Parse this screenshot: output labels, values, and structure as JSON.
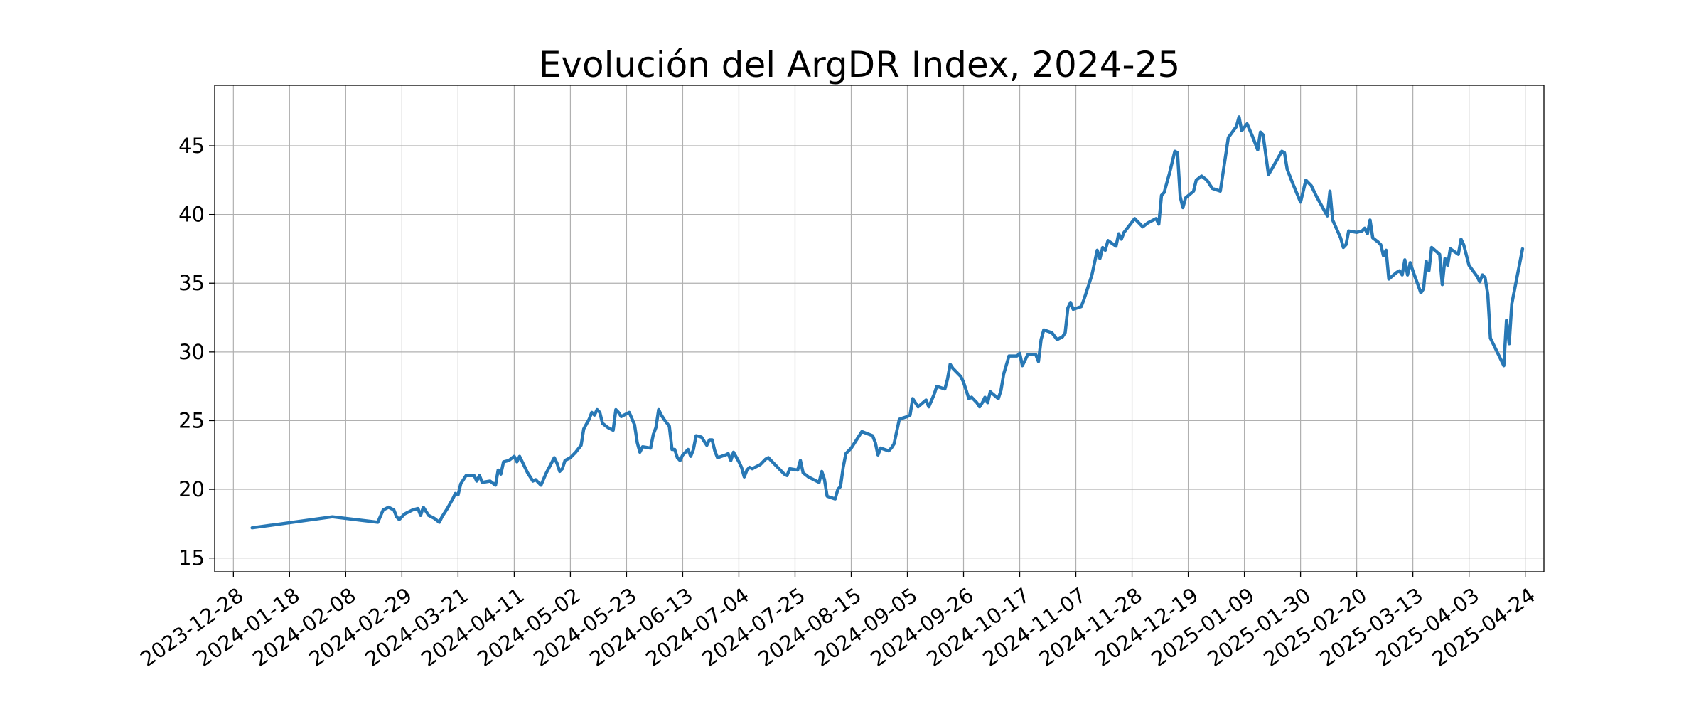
{
  "chart_data": {
    "type": "line",
    "title": "Evolución del ArgDR Index, 2024-25",
    "xlabel": "",
    "ylabel": "",
    "x_axis_type": "date",
    "xlim": [
      "2023-12-21",
      "2025-05-01"
    ],
    "ylim": [
      14,
      49.4
    ],
    "grid": true,
    "legend": "none",
    "line_color": "#2878b5",
    "x_ticks": [
      "2023-12-28",
      "2024-01-18",
      "2024-02-08",
      "2024-02-29",
      "2024-03-21",
      "2024-04-11",
      "2024-05-02",
      "2024-05-23",
      "2024-06-13",
      "2024-07-04",
      "2024-07-25",
      "2024-08-15",
      "2024-09-05",
      "2024-09-26",
      "2024-10-17",
      "2024-11-07",
      "2024-11-28",
      "2024-12-19",
      "2025-01-09",
      "2025-01-30",
      "2025-02-20",
      "2025-03-13",
      "2025-04-03",
      "2025-04-24"
    ],
    "y_ticks": [
      "15",
      "20",
      "25",
      "30",
      "35",
      "40",
      "45"
    ],
    "series": [
      {
        "points": [
          [
            "2024-01-04",
            17.2
          ],
          [
            "2024-02-03",
            18.0
          ],
          [
            "2024-02-20",
            17.6
          ],
          [
            "2024-02-22",
            18.5
          ],
          [
            "2024-02-24",
            18.7
          ],
          [
            "2024-02-26",
            18.5
          ],
          [
            "2024-02-27",
            18.0
          ],
          [
            "2024-02-28",
            17.8
          ],
          [
            "2024-03-01",
            18.2
          ],
          [
            "2024-03-04",
            18.5
          ],
          [
            "2024-03-06",
            18.6
          ],
          [
            "2024-03-07",
            18.1
          ],
          [
            "2024-03-08",
            18.7
          ],
          [
            "2024-03-10",
            18.1
          ],
          [
            "2024-03-12",
            17.9
          ],
          [
            "2024-03-14",
            17.6
          ],
          [
            "2024-03-15",
            18.0
          ],
          [
            "2024-03-17",
            18.6
          ],
          [
            "2024-03-19",
            19.3
          ],
          [
            "2024-03-20",
            19.7
          ],
          [
            "2024-03-21",
            19.6
          ],
          [
            "2024-03-22",
            20.4
          ],
          [
            "2024-03-24",
            21.0
          ],
          [
            "2024-03-27",
            21.0
          ],
          [
            "2024-03-28",
            20.6
          ],
          [
            "2024-03-29",
            21.0
          ],
          [
            "2024-03-30",
            20.5
          ],
          [
            "2024-04-02",
            20.6
          ],
          [
            "2024-04-04",
            20.3
          ],
          [
            "2024-04-05",
            21.4
          ],
          [
            "2024-04-06",
            21.1
          ],
          [
            "2024-04-07",
            22.0
          ],
          [
            "2024-04-09",
            22.1
          ],
          [
            "2024-04-11",
            22.4
          ],
          [
            "2024-04-12",
            22.0
          ],
          [
            "2024-04-13",
            22.4
          ],
          [
            "2024-04-14",
            22.0
          ],
          [
            "2024-04-16",
            21.2
          ],
          [
            "2024-04-18",
            20.6
          ],
          [
            "2024-04-19",
            20.7
          ],
          [
            "2024-04-21",
            20.3
          ],
          [
            "2024-04-23",
            21.2
          ],
          [
            "2024-04-26",
            22.3
          ],
          [
            "2024-04-27",
            21.9
          ],
          [
            "2024-04-28",
            21.3
          ],
          [
            "2024-04-29",
            21.5
          ],
          [
            "2024-04-30",
            22.1
          ],
          [
            "2024-05-02",
            22.3
          ],
          [
            "2024-05-04",
            22.7
          ],
          [
            "2024-05-06",
            23.2
          ],
          [
            "2024-05-07",
            24.4
          ],
          [
            "2024-05-09",
            25.1
          ],
          [
            "2024-05-10",
            25.6
          ],
          [
            "2024-05-11",
            25.4
          ],
          [
            "2024-05-12",
            25.8
          ],
          [
            "2024-05-13",
            25.6
          ],
          [
            "2024-05-14",
            24.8
          ],
          [
            "2024-05-16",
            24.5
          ],
          [
            "2024-05-18",
            24.3
          ],
          [
            "2024-05-19",
            25.8
          ],
          [
            "2024-05-20",
            25.6
          ],
          [
            "2024-05-21",
            25.3
          ],
          [
            "2024-05-24",
            25.6
          ],
          [
            "2024-05-26",
            24.7
          ],
          [
            "2024-05-27",
            23.4
          ],
          [
            "2024-05-28",
            22.7
          ],
          [
            "2024-05-29",
            23.1
          ],
          [
            "2024-06-01",
            23.0
          ],
          [
            "2024-06-02",
            24.0
          ],
          [
            "2024-06-03",
            24.5
          ],
          [
            "2024-06-04",
            25.8
          ],
          [
            "2024-06-05",
            25.4
          ],
          [
            "2024-06-06",
            25.1
          ],
          [
            "2024-06-08",
            24.6
          ],
          [
            "2024-06-09",
            22.9
          ],
          [
            "2024-06-10",
            22.9
          ],
          [
            "2024-06-11",
            22.3
          ],
          [
            "2024-06-12",
            22.1
          ],
          [
            "2024-06-13",
            22.5
          ],
          [
            "2024-06-15",
            22.9
          ],
          [
            "2024-06-16",
            22.4
          ],
          [
            "2024-06-17",
            22.9
          ],
          [
            "2024-06-18",
            23.9
          ],
          [
            "2024-06-20",
            23.8
          ],
          [
            "2024-06-22",
            23.2
          ],
          [
            "2024-06-23",
            23.6
          ],
          [
            "2024-06-24",
            23.6
          ],
          [
            "2024-06-25",
            22.8
          ],
          [
            "2024-06-26",
            22.3
          ],
          [
            "2024-06-29",
            22.5
          ],
          [
            "2024-06-30",
            22.6
          ],
          [
            "2024-07-01",
            22.1
          ],
          [
            "2024-07-02",
            22.7
          ],
          [
            "2024-07-04",
            22.0
          ],
          [
            "2024-07-05",
            21.6
          ],
          [
            "2024-07-06",
            20.9
          ],
          [
            "2024-07-07",
            21.4
          ],
          [
            "2024-07-08",
            21.6
          ],
          [
            "2024-07-09",
            21.5
          ],
          [
            "2024-07-12",
            21.8
          ],
          [
            "2024-07-14",
            22.2
          ],
          [
            "2024-07-15",
            22.3
          ],
          [
            "2024-07-17",
            21.9
          ],
          [
            "2024-07-19",
            21.5
          ],
          [
            "2024-07-21",
            21.1
          ],
          [
            "2024-07-22",
            21.0
          ],
          [
            "2024-07-23",
            21.5
          ],
          [
            "2024-07-26",
            21.4
          ],
          [
            "2024-07-27",
            22.1
          ],
          [
            "2024-07-28",
            21.2
          ],
          [
            "2024-07-30",
            20.9
          ],
          [
            "2024-08-03",
            20.5
          ],
          [
            "2024-08-04",
            21.3
          ],
          [
            "2024-08-05",
            20.7
          ],
          [
            "2024-08-06",
            19.5
          ],
          [
            "2024-08-09",
            19.3
          ],
          [
            "2024-08-10",
            20.0
          ],
          [
            "2024-08-11",
            20.2
          ],
          [
            "2024-08-12",
            21.6
          ],
          [
            "2024-08-13",
            22.6
          ],
          [
            "2024-08-15",
            23.0
          ],
          [
            "2024-08-17",
            23.6
          ],
          [
            "2024-08-19",
            24.2
          ],
          [
            "2024-08-23",
            23.9
          ],
          [
            "2024-08-24",
            23.4
          ],
          [
            "2024-08-25",
            22.5
          ],
          [
            "2024-08-26",
            23.0
          ],
          [
            "2024-08-29",
            22.8
          ],
          [
            "2024-08-30",
            23.0
          ],
          [
            "2024-08-31",
            23.3
          ],
          [
            "2024-09-02",
            25.1
          ],
          [
            "2024-09-05",
            25.3
          ],
          [
            "2024-09-06",
            25.4
          ],
          [
            "2024-09-07",
            26.6
          ],
          [
            "2024-09-08",
            26.3
          ],
          [
            "2024-09-09",
            26.0
          ],
          [
            "2024-09-12",
            26.5
          ],
          [
            "2024-09-13",
            26.0
          ],
          [
            "2024-09-15",
            26.9
          ],
          [
            "2024-09-16",
            27.5
          ],
          [
            "2024-09-19",
            27.3
          ],
          [
            "2024-09-20",
            28.0
          ],
          [
            "2024-09-21",
            29.1
          ],
          [
            "2024-09-22",
            28.8
          ],
          [
            "2024-09-25",
            28.2
          ],
          [
            "2024-09-26",
            27.8
          ],
          [
            "2024-09-28",
            26.6
          ],
          [
            "2024-09-29",
            26.7
          ],
          [
            "2024-10-01",
            26.3
          ],
          [
            "2024-10-02",
            26.0
          ],
          [
            "2024-10-03",
            26.3
          ],
          [
            "2024-10-04",
            26.7
          ],
          [
            "2024-10-05",
            26.3
          ],
          [
            "2024-10-06",
            27.1
          ],
          [
            "2024-10-09",
            26.6
          ],
          [
            "2024-10-10",
            27.2
          ],
          [
            "2024-10-11",
            28.4
          ],
          [
            "2024-10-13",
            29.7
          ],
          [
            "2024-10-16",
            29.7
          ],
          [
            "2024-10-17",
            29.9
          ],
          [
            "2024-10-18",
            29.0
          ],
          [
            "2024-10-20",
            29.8
          ],
          [
            "2024-10-23",
            29.8
          ],
          [
            "2024-10-24",
            29.3
          ],
          [
            "2024-10-25",
            30.9
          ],
          [
            "2024-10-26",
            31.6
          ],
          [
            "2024-10-29",
            31.4
          ],
          [
            "2024-10-31",
            30.9
          ],
          [
            "2024-11-02",
            31.1
          ],
          [
            "2024-11-03",
            31.4
          ],
          [
            "2024-11-04",
            33.2
          ],
          [
            "2024-11-05",
            33.6
          ],
          [
            "2024-11-06",
            33.1
          ],
          [
            "2024-11-09",
            33.3
          ],
          [
            "2024-11-10",
            33.8
          ],
          [
            "2024-11-12",
            35.0
          ],
          [
            "2024-11-13",
            35.6
          ],
          [
            "2024-11-15",
            37.4
          ],
          [
            "2024-11-16",
            36.8
          ],
          [
            "2024-11-17",
            37.6
          ],
          [
            "2024-11-18",
            37.4
          ],
          [
            "2024-11-19",
            38.1
          ],
          [
            "2024-11-22",
            37.7
          ],
          [
            "2024-11-23",
            38.6
          ],
          [
            "2024-11-24",
            38.2
          ],
          [
            "2024-11-25",
            38.7
          ],
          [
            "2024-11-27",
            39.2
          ],
          [
            "2024-11-29",
            39.7
          ],
          [
            "2024-12-02",
            39.1
          ],
          [
            "2024-12-04",
            39.4
          ],
          [
            "2024-12-07",
            39.7
          ],
          [
            "2024-12-08",
            39.3
          ],
          [
            "2024-12-09",
            41.4
          ],
          [
            "2024-12-10",
            41.6
          ],
          [
            "2024-12-12",
            43.0
          ],
          [
            "2024-12-14",
            44.6
          ],
          [
            "2024-12-15",
            44.5
          ],
          [
            "2024-12-16",
            41.3
          ],
          [
            "2024-12-17",
            40.5
          ],
          [
            "2024-12-18",
            41.2
          ],
          [
            "2024-12-21",
            41.7
          ],
          [
            "2024-12-22",
            42.5
          ],
          [
            "2024-12-24",
            42.8
          ],
          [
            "2024-12-26",
            42.5
          ],
          [
            "2024-12-28",
            41.9
          ],
          [
            "2024-12-31",
            41.7
          ],
          [
            "2025-01-03",
            45.6
          ],
          [
            "2025-01-06",
            46.4
          ],
          [
            "2025-01-07",
            47.1
          ],
          [
            "2025-01-08",
            46.1
          ],
          [
            "2025-01-10",
            46.6
          ],
          [
            "2025-01-12",
            45.7
          ],
          [
            "2025-01-14",
            44.7
          ],
          [
            "2025-01-15",
            46.0
          ],
          [
            "2025-01-16",
            45.8
          ],
          [
            "2025-01-18",
            42.9
          ],
          [
            "2025-01-21",
            43.9
          ],
          [
            "2025-01-23",
            44.6
          ],
          [
            "2025-01-24",
            44.5
          ],
          [
            "2025-01-25",
            43.3
          ],
          [
            "2025-01-27",
            42.3
          ],
          [
            "2025-01-30",
            40.9
          ],
          [
            "2025-02-01",
            42.5
          ],
          [
            "2025-02-03",
            42.1
          ],
          [
            "2025-02-05",
            41.3
          ],
          [
            "2025-02-07",
            40.6
          ],
          [
            "2025-02-09",
            39.9
          ],
          [
            "2025-02-10",
            41.7
          ],
          [
            "2025-02-11",
            39.6
          ],
          [
            "2025-02-14",
            38.3
          ],
          [
            "2025-02-15",
            37.6
          ],
          [
            "2025-02-16",
            37.8
          ],
          [
            "2025-02-17",
            38.8
          ],
          [
            "2025-02-20",
            38.7
          ],
          [
            "2025-02-22",
            38.8
          ],
          [
            "2025-02-23",
            39.0
          ],
          [
            "2025-02-24",
            38.6
          ],
          [
            "2025-02-25",
            39.6
          ],
          [
            "2025-02-26",
            38.3
          ],
          [
            "2025-02-28",
            38.0
          ],
          [
            "2025-03-01",
            37.8
          ],
          [
            "2025-03-02",
            37.0
          ],
          [
            "2025-03-03",
            37.4
          ],
          [
            "2025-03-04",
            35.3
          ],
          [
            "2025-03-07",
            35.8
          ],
          [
            "2025-03-08",
            35.9
          ],
          [
            "2025-03-09",
            35.6
          ],
          [
            "2025-03-10",
            36.7
          ],
          [
            "2025-03-11",
            35.6
          ],
          [
            "2025-03-12",
            36.5
          ],
          [
            "2025-03-13",
            35.9
          ],
          [
            "2025-03-16",
            34.3
          ],
          [
            "2025-03-17",
            34.6
          ],
          [
            "2025-03-18",
            36.6
          ],
          [
            "2025-03-19",
            35.9
          ],
          [
            "2025-03-20",
            37.6
          ],
          [
            "2025-03-23",
            37.1
          ],
          [
            "2025-03-24",
            34.9
          ],
          [
            "2025-03-25",
            36.8
          ],
          [
            "2025-03-26",
            36.3
          ],
          [
            "2025-03-27",
            37.5
          ],
          [
            "2025-03-30",
            37.1
          ],
          [
            "2025-03-31",
            38.2
          ],
          [
            "2025-04-01",
            37.8
          ],
          [
            "2025-04-03",
            36.3
          ],
          [
            "2025-04-06",
            35.5
          ],
          [
            "2025-04-07",
            35.1
          ],
          [
            "2025-04-08",
            35.6
          ],
          [
            "2025-04-09",
            35.4
          ],
          [
            "2025-04-10",
            34.2
          ],
          [
            "2025-04-11",
            31.0
          ],
          [
            "2025-04-14",
            29.8
          ],
          [
            "2025-04-16",
            29.0
          ],
          [
            "2025-04-17",
            32.3
          ],
          [
            "2025-04-18",
            30.6
          ],
          [
            "2025-04-19",
            33.5
          ],
          [
            "2025-04-23",
            37.5
          ]
        ]
      }
    ]
  }
}
